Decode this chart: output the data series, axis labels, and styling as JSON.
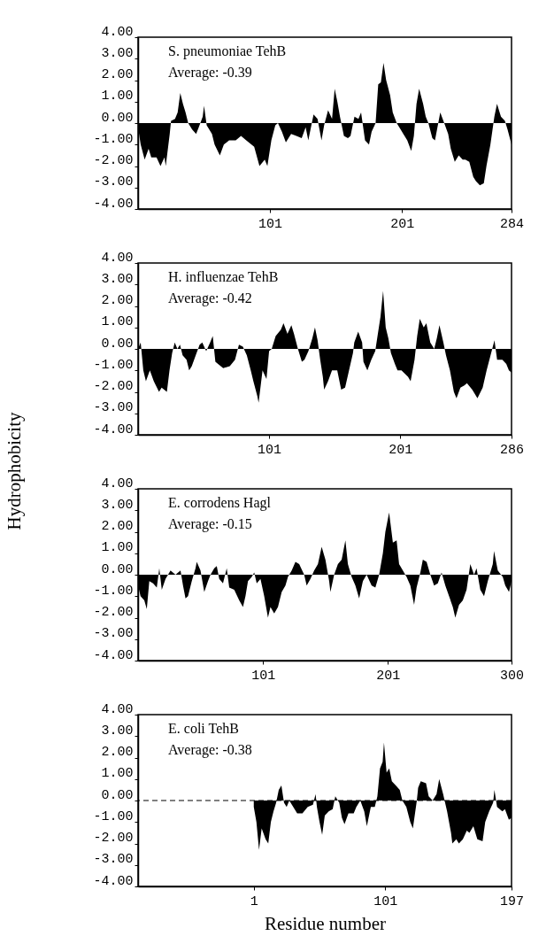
{
  "chart_data": [
    {
      "type": "area",
      "color": "#000000",
      "annotations": [
        "S. pneumoniae TehB",
        "Average: -0.39"
      ],
      "x": [
        1,
        3,
        6,
        9,
        11,
        15,
        18,
        21,
        22,
        25,
        26,
        29,
        31,
        33,
        35,
        37,
        39,
        42,
        45,
        47,
        50,
        51,
        53,
        57,
        59,
        63,
        66,
        70,
        75,
        79,
        83,
        89,
        93,
        97,
        99,
        102,
        105,
        107,
        110,
        113,
        117,
        121,
        125,
        128,
        130,
        134,
        137,
        140,
        142,
        145,
        148,
        150,
        152,
        154,
        157,
        160,
        162,
        165,
        168,
        170,
        173,
        176,
        178,
        181,
        183,
        185,
        187,
        189,
        192,
        194,
        197,
        200,
        202,
        205,
        208,
        210,
        212,
        214,
        217,
        219,
        221,
        224,
        226,
        230,
        233,
        236,
        238,
        241,
        244,
        247,
        249,
        252,
        255,
        257,
        260,
        263,
        265,
        268,
        271,
        273,
        276,
        279,
        281,
        284
      ],
      "values": [
        -0.2,
        -1.0,
        -1.7,
        -1.2,
        -1.6,
        -1.6,
        -2.0,
        -1.6,
        -2.0,
        -0.5,
        0.1,
        0.2,
        0.5,
        1.4,
        0.9,
        0.5,
        0.0,
        -0.3,
        -0.5,
        -0.2,
        0.3,
        0.8,
        -0.1,
        -0.5,
        -1.0,
        -1.5,
        -1.0,
        -0.8,
        -0.8,
        -0.6,
        -0.8,
        -1.1,
        -2.0,
        -1.7,
        -2.0,
        -0.8,
        -0.1,
        0.0,
        -0.4,
        -0.9,
        -0.5,
        -0.6,
        -0.7,
        -0.2,
        -0.8,
        0.4,
        0.2,
        -0.8,
        -0.1,
        0.6,
        0.2,
        1.6,
        1.0,
        0.3,
        -0.6,
        -0.7,
        -0.6,
        0.3,
        0.2,
        0.5,
        -0.8,
        -1.0,
        -0.4,
        0.0,
        1.8,
        1.9,
        2.8,
        2.0,
        1.3,
        0.5,
        0.0,
        -0.3,
        -0.5,
        -0.8,
        -1.3,
        -0.6,
        0.9,
        1.6,
        0.9,
        0.3,
        0.0,
        -0.7,
        -0.8,
        0.5,
        0.0,
        -0.5,
        -1.2,
        -1.8,
        -1.5,
        -1.7,
        -1.7,
        -1.8,
        -2.5,
        -2.7,
        -2.9,
        -2.8,
        -2.0,
        -1.0,
        0.3,
        0.9,
        0.3,
        0.1,
        -0.3,
        -1.0
      ],
      "xlim": [
        1,
        284
      ],
      "xticks": [
        101,
        201,
        284
      ],
      "ylim": [
        -4,
        4
      ],
      "yticks": [
        {
          "value": -4,
          "label": "-4.00"
        },
        {
          "value": -3,
          "label": "-3.00"
        },
        {
          "value": -2,
          "label": "-2.00"
        },
        {
          "value": -1,
          "label": "-1.00"
        },
        {
          "value": 0,
          "label": "0.00"
        },
        {
          "value": 1,
          "label": "1.00"
        },
        {
          "value": 2,
          "label": "2.00"
        },
        {
          "value": 3,
          "label": "3.00"
        },
        {
          "value": 4,
          "label": "4.00"
        }
      ]
    },
    {
      "type": "area",
      "color": "#000000",
      "ylabel": "Hydrophobicity",
      "annotations": [
        "H. influenzae TehB",
        "Average: -0.42"
      ],
      "x": [
        1,
        3,
        5,
        7,
        10,
        13,
        17,
        19,
        23,
        25,
        27,
        29,
        31,
        33,
        35,
        38,
        40,
        42,
        45,
        48,
        50,
        53,
        56,
        58,
        60,
        62,
        66,
        71,
        75,
        78,
        81,
        84,
        87,
        89,
        92,
        93,
        96,
        99,
        101,
        103,
        106,
        110,
        112,
        115,
        118,
        120,
        123,
        126,
        128,
        131,
        134,
        136,
        138,
        140,
        142,
        143,
        146,
        149,
        153,
        156,
        159,
        162,
        165,
        166,
        169,
        172,
        173,
        176,
        179,
        182,
        184,
        186,
        188,
        190,
        192,
        194,
        197,
        199,
        202,
        207,
        209,
        212,
        214,
        216,
        219,
        221,
        224,
        227,
        229,
        231,
        234,
        236,
        239,
        242,
        244,
        247,
        250,
        252,
        256,
        260,
        264,
        267,
        270,
        273,
        275,
        279,
        282,
        284,
        286
      ],
      "values": [
        0.0,
        0.3,
        -1.0,
        -1.5,
        -1.0,
        -1.5,
        -2.0,
        -1.8,
        -2.0,
        -1.0,
        -0.2,
        0.3,
        0.0,
        0.2,
        -0.3,
        -0.5,
        -1.0,
        -0.8,
        -0.3,
        0.2,
        0.3,
        -0.1,
        0.3,
        0.6,
        -0.6,
        -0.7,
        -0.9,
        -0.8,
        -0.5,
        0.2,
        0.1,
        -0.3,
        -1.0,
        -1.5,
        -2.2,
        -2.5,
        -1.0,
        -1.4,
        -0.1,
        0.0,
        0.6,
        0.9,
        1.2,
        0.7,
        1.1,
        0.7,
        0.0,
        -0.6,
        -0.5,
        -0.1,
        0.5,
        1.0,
        0.4,
        -0.5,
        -1.3,
        -1.9,
        -1.5,
        -1.0,
        -1.0,
        -1.9,
        -1.8,
        -1.0,
        -0.2,
        0.3,
        0.8,
        0.3,
        -0.6,
        -1.0,
        -0.5,
        -0.1,
        0.7,
        1.5,
        2.7,
        1.0,
        0.5,
        -0.2,
        -0.7,
        -1.0,
        -1.0,
        -1.3,
        -1.5,
        -0.5,
        0.6,
        1.4,
        1.0,
        1.2,
        0.3,
        0.0,
        0.5,
        1.1,
        0.3,
        -0.3,
        -1.0,
        -2.0,
        -2.3,
        -1.8,
        -1.7,
        -1.6,
        -1.9,
        -2.3,
        -1.8,
        -1.0,
        -0.3,
        0.4,
        -0.5,
        -0.5,
        -0.7,
        -1.0,
        -1.1
      ],
      "xlim": [
        1,
        286
      ],
      "xticks": [
        101,
        201,
        286
      ],
      "ylim": [
        -4,
        4
      ],
      "yticks": [
        {
          "value": -4,
          "label": "-4.00"
        },
        {
          "value": -3,
          "label": "-3.00"
        },
        {
          "value": -2,
          "label": "-2.00"
        },
        {
          "value": -1,
          "label": "-1.00"
        },
        {
          "value": 0,
          "label": "0.00"
        },
        {
          "value": 1,
          "label": "1.00"
        },
        {
          "value": 2,
          "label": "2.00"
        },
        {
          "value": 3,
          "label": "3.00"
        },
        {
          "value": 4,
          "label": "4.00"
        }
      ]
    },
    {
      "type": "area",
      "color": "#000000",
      "annotations": [
        "E. corrodens Hagl",
        "Average: -0.15"
      ],
      "x": [
        1,
        3,
        6,
        8,
        10,
        13,
        16,
        18,
        20,
        23,
        27,
        31,
        35,
        37,
        39,
        41,
        44,
        47,
        48,
        51,
        54,
        57,
        59,
        62,
        64,
        66,
        69,
        72,
        74,
        78,
        82,
        85,
        87,
        89,
        92,
        94,
        96,
        99,
        102,
        105,
        107,
        110,
        113,
        116,
        119,
        121,
        124,
        127,
        130,
        134,
        136,
        139,
        142,
        145,
        148,
        151,
        154,
        155,
        158,
        161,
        164,
        167,
        169,
        172,
        175,
        178,
        181,
        184,
        188,
        191,
        194,
        197,
        199,
        202,
        205,
        208,
        210,
        213,
        216,
        219,
        222,
        224,
        227,
        229,
        232,
        235,
        238,
        241,
        244,
        247,
        250,
        253,
        255,
        258,
        261,
        264,
        267,
        270,
        272,
        275,
        278,
        281,
        285,
        286,
        289,
        293,
        295,
        298,
        300
      ],
      "values": [
        -0.5,
        -1.0,
        -1.2,
        -1.6,
        -0.3,
        -0.4,
        -0.6,
        0.3,
        -0.7,
        -0.2,
        0.2,
        0.0,
        0.2,
        -0.5,
        -1.1,
        -1.0,
        -0.3,
        0.3,
        0.6,
        0.2,
        -0.8,
        -0.3,
        0.0,
        0.3,
        0.4,
        -0.2,
        -0.4,
        0.3,
        -0.6,
        -0.7,
        -1.2,
        -1.5,
        -1.0,
        -0.3,
        -0.1,
        0.1,
        -0.4,
        -0.2,
        -1.0,
        -2.0,
        -1.5,
        -1.8,
        -1.5,
        -0.8,
        -0.5,
        -0.1,
        0.2,
        0.6,
        0.5,
        0.0,
        -0.5,
        -0.2,
        0.2,
        0.5,
        1.3,
        0.7,
        -0.3,
        -0.8,
        0.0,
        0.5,
        0.7,
        1.6,
        0.5,
        -0.1,
        -0.5,
        -1.1,
        -0.3,
        0.0,
        -0.5,
        -0.6,
        0.0,
        1.0,
        2.0,
        2.9,
        1.5,
        1.6,
        0.5,
        0.2,
        -0.1,
        -0.5,
        -1.4,
        -0.6,
        0.1,
        0.7,
        0.6,
        0.0,
        -0.5,
        -0.4,
        0.1,
        -0.5,
        -1.0,
        -1.5,
        -2.0,
        -1.4,
        -1.2,
        -0.7,
        0.5,
        0.0,
        0.3,
        -0.7,
        -1.0,
        -0.3,
        0.5,
        1.1,
        0.2,
        -0.1,
        -0.5,
        -0.8,
        -0.3
      ],
      "xlim": [
        1,
        300
      ],
      "xticks": [
        101,
        201,
        300
      ],
      "ylim": [
        -4,
        4
      ],
      "yticks": [
        {
          "value": -4,
          "label": "-4.00"
        },
        {
          "value": -3,
          "label": "-3.00"
        },
        {
          "value": -2,
          "label": "-2.00"
        },
        {
          "value": -1,
          "label": "-1.00"
        },
        {
          "value": 0,
          "label": "0.00"
        },
        {
          "value": 1,
          "label": "1.00"
        },
        {
          "value": 2,
          "label": "2.00"
        },
        {
          "value": 3,
          "label": "3.00"
        },
        {
          "value": 4,
          "label": "4.00"
        }
      ]
    },
    {
      "type": "area",
      "color": "#000000",
      "xlabel": "Residue number",
      "annotations": [
        "E. coli TehB",
        "Average: -0.38"
      ],
      "x": [
        1,
        3,
        5,
        7,
        10,
        12,
        14,
        16,
        18,
        20,
        22,
        24,
        26,
        28,
        31,
        34,
        38,
        42,
        46,
        48,
        49,
        51,
        53,
        55,
        58,
        61,
        63,
        66,
        68,
        70,
        73,
        77,
        79,
        82,
        85,
        87,
        90,
        93,
        95,
        97,
        99,
        100,
        102,
        104,
        106,
        109,
        112,
        114,
        117,
        120,
        122,
        125,
        126,
        128,
        132,
        134,
        137,
        140,
        142,
        145,
        148,
        151,
        152,
        155,
        157,
        160,
        163,
        165,
        168,
        171,
        175,
        177,
        180,
        183,
        184,
        186,
        190,
        192,
        195,
        197
      ],
      "values": [
        -0.3,
        -1.0,
        -2.3,
        -1.3,
        -1.8,
        -2.0,
        -1.0,
        -0.5,
        -0.1,
        0.5,
        0.7,
        -0.1,
        -0.3,
        0.0,
        -0.3,
        -0.6,
        -0.6,
        -0.3,
        -0.2,
        0.3,
        -0.3,
        -1.0,
        -1.6,
        -0.7,
        -0.5,
        -0.4,
        0.2,
        -0.1,
        -0.8,
        -1.1,
        -0.6,
        -0.6,
        -0.3,
        0.0,
        -0.5,
        -1.2,
        -0.3,
        -0.3,
        0.2,
        1.5,
        1.8,
        2.7,
        1.3,
        1.5,
        0.9,
        0.7,
        0.5,
        0.0,
        -0.3,
        -1.0,
        -1.3,
        0.0,
        0.6,
        0.9,
        0.8,
        0.2,
        0.0,
        0.3,
        1.0,
        0.3,
        -0.5,
        -1.5,
        -2.0,
        -1.8,
        -2.0,
        -1.8,
        -1.4,
        -1.5,
        -1.2,
        -1.8,
        -1.9,
        -1.0,
        -0.5,
        -0.1,
        0.5,
        -0.3,
        -0.5,
        -0.4,
        -0.9,
        -0.8
      ],
      "xlim": [
        -87,
        197
      ],
      "xticks": [
        1,
        101,
        197
      ],
      "ylim": [
        -4,
        4
      ],
      "ref_lines": [
        {
          "axis": "y",
          "value": 0,
          "line_style": "dashed"
        }
      ],
      "yticks": [
        {
          "value": -4,
          "label": "-4.00"
        },
        {
          "value": -3,
          "label": "-3.00"
        },
        {
          "value": -2,
          "label": "-2.00"
        },
        {
          "value": -1,
          "label": "-1.00"
        },
        {
          "value": 0,
          "label": "0.00"
        },
        {
          "value": 1,
          "label": "1.00"
        },
        {
          "value": 2,
          "label": "2.00"
        },
        {
          "value": 3,
          "label": "3.00"
        },
        {
          "value": 4,
          "label": "4.00"
        }
      ]
    }
  ]
}
